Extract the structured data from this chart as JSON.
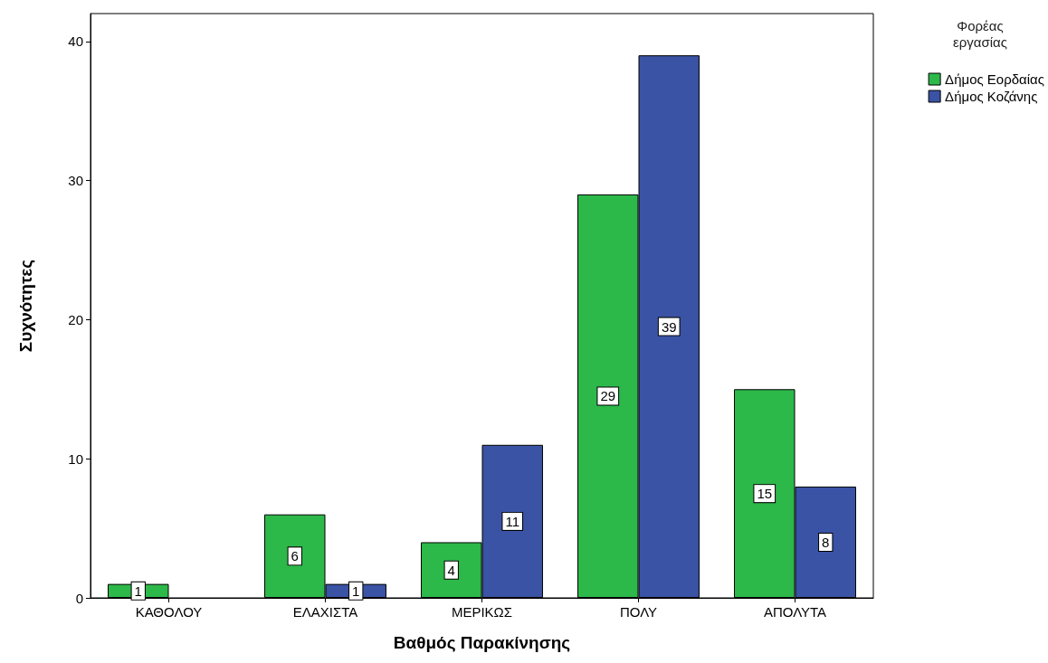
{
  "chart_data": {
    "type": "bar",
    "xlabel": "Βαθμός Παρακίνησης",
    "ylabel": "Συχνότητες",
    "legend_title": "Φορέας εργασίας",
    "categories": [
      "ΚΑΘΟΛΟΥ",
      "ΕΛΑΧΙΣΤΑ",
      "ΜΕΡΙΚΩΣ",
      "ΠΟΛΥ",
      "ΑΠΟΛΥΤΑ"
    ],
    "series": [
      {
        "name": "Δήμος Εορδαίας",
        "color": "#2db84a",
        "values": [
          1,
          6,
          4,
          29,
          15
        ]
      },
      {
        "name": "Δήμος Κοζάνης",
        "color": "#3a53a4",
        "values": [
          null,
          1,
          11,
          39,
          8
        ]
      }
    ],
    "ylim": [
      0,
      42
    ],
    "yticks": [
      0,
      10,
      20,
      30,
      40
    ],
    "grid": false,
    "legend": "top right",
    "data_labels": true
  }
}
